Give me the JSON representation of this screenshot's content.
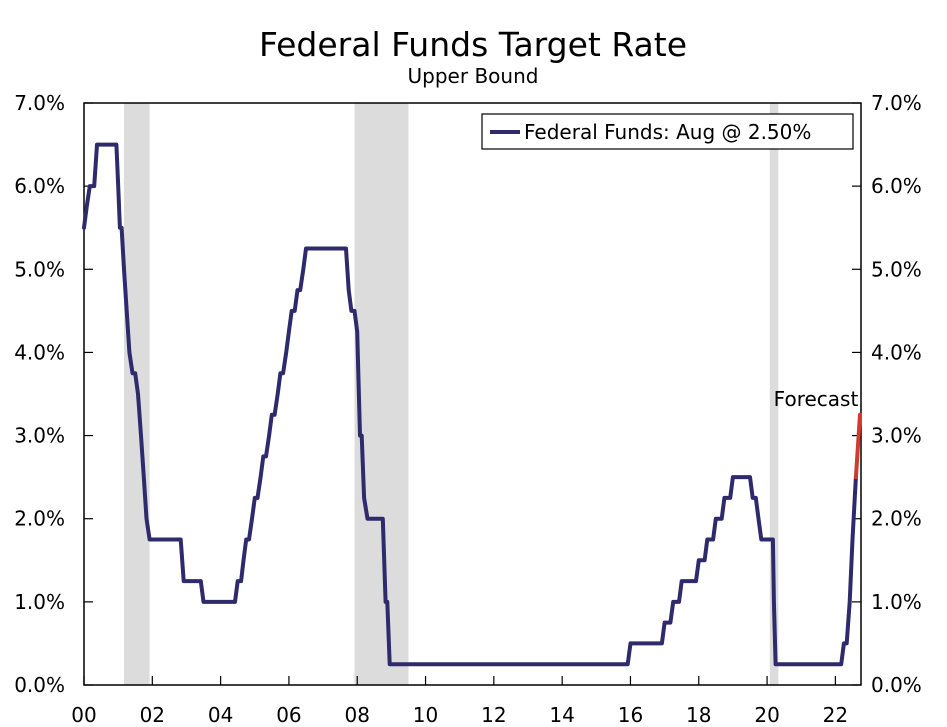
{
  "chart_data": {
    "type": "line",
    "title": "Federal Funds Target Rate",
    "subtitle": "Upper Bound",
    "xlabel": "",
    "ylabel": "",
    "x_range": [
      2000.0,
      2022.75
    ],
    "ylim": [
      0,
      7
    ],
    "x_ticks": [
      {
        "value": 2000,
        "label": "00"
      },
      {
        "value": 2002,
        "label": "02"
      },
      {
        "value": 2004,
        "label": "04"
      },
      {
        "value": 2006,
        "label": "06"
      },
      {
        "value": 2008,
        "label": "08"
      },
      {
        "value": 2010,
        "label": "10"
      },
      {
        "value": 2012,
        "label": "12"
      },
      {
        "value": 2014,
        "label": "14"
      },
      {
        "value": 2016,
        "label": "16"
      },
      {
        "value": 2018,
        "label": "18"
      },
      {
        "value": 2020,
        "label": "20"
      },
      {
        "value": 2022,
        "label": "22"
      }
    ],
    "y_ticks": [
      {
        "value": 0,
        "label": "0.0%"
      },
      {
        "value": 1,
        "label": "1.0%"
      },
      {
        "value": 2,
        "label": "2.0%"
      },
      {
        "value": 3,
        "label": "3.0%"
      },
      {
        "value": 4,
        "label": "4.0%"
      },
      {
        "value": 5,
        "label": "5.0%"
      },
      {
        "value": 6,
        "label": "6.0%"
      },
      {
        "value": 7,
        "label": "7.0%"
      }
    ],
    "recessions": [
      {
        "start": 2001.17,
        "end": 2001.92
      },
      {
        "start": 2007.92,
        "end": 2009.5
      },
      {
        "start": 2020.08,
        "end": 2020.33
      }
    ],
    "legend_position": "top-right",
    "grid": false,
    "series": [
      {
        "name": "Federal Funds: Aug @ 2.50%",
        "color": "#2e2a6b",
        "points": [
          [
            2000.0,
            5.5
          ],
          [
            2000.08,
            5.75
          ],
          [
            2000.17,
            6.0
          ],
          [
            2000.3,
            6.0
          ],
          [
            2000.38,
            6.5
          ],
          [
            2000.5,
            6.5
          ],
          [
            2000.95,
            6.5
          ],
          [
            2001.0,
            6.0
          ],
          [
            2001.05,
            5.5
          ],
          [
            2001.1,
            5.5
          ],
          [
            2001.17,
            5.0
          ],
          [
            2001.25,
            4.5
          ],
          [
            2001.33,
            4.0
          ],
          [
            2001.42,
            3.75
          ],
          [
            2001.5,
            3.75
          ],
          [
            2001.58,
            3.5
          ],
          [
            2001.67,
            3.0
          ],
          [
            2001.75,
            2.5
          ],
          [
            2001.83,
            2.0
          ],
          [
            2001.92,
            1.75
          ],
          [
            2002.83,
            1.75
          ],
          [
            2002.92,
            1.25
          ],
          [
            2003.42,
            1.25
          ],
          [
            2003.5,
            1.0
          ],
          [
            2004.42,
            1.0
          ],
          [
            2004.5,
            1.25
          ],
          [
            2004.6,
            1.25
          ],
          [
            2004.67,
            1.5
          ],
          [
            2004.75,
            1.75
          ],
          [
            2004.83,
            1.75
          ],
          [
            2004.92,
            2.0
          ],
          [
            2005.0,
            2.25
          ],
          [
            2005.08,
            2.25
          ],
          [
            2005.17,
            2.5
          ],
          [
            2005.25,
            2.75
          ],
          [
            2005.33,
            2.75
          ],
          [
            2005.42,
            3.0
          ],
          [
            2005.5,
            3.25
          ],
          [
            2005.58,
            3.25
          ],
          [
            2005.67,
            3.5
          ],
          [
            2005.75,
            3.75
          ],
          [
            2005.83,
            3.75
          ],
          [
            2005.92,
            4.0
          ],
          [
            2006.0,
            4.25
          ],
          [
            2006.08,
            4.5
          ],
          [
            2006.17,
            4.5
          ],
          [
            2006.25,
            4.75
          ],
          [
            2006.33,
            4.75
          ],
          [
            2006.42,
            5.0
          ],
          [
            2006.5,
            5.25
          ],
          [
            2007.67,
            5.25
          ],
          [
            2007.75,
            4.75
          ],
          [
            2007.83,
            4.5
          ],
          [
            2007.92,
            4.5
          ],
          [
            2008.0,
            4.25
          ],
          [
            2008.08,
            3.0
          ],
          [
            2008.13,
            3.0
          ],
          [
            2008.2,
            2.25
          ],
          [
            2008.3,
            2.0
          ],
          [
            2008.75,
            2.0
          ],
          [
            2008.83,
            1.0
          ],
          [
            2008.88,
            1.0
          ],
          [
            2008.95,
            0.25
          ],
          [
            2015.92,
            0.25
          ],
          [
            2016.0,
            0.5
          ],
          [
            2016.92,
            0.5
          ],
          [
            2017.0,
            0.75
          ],
          [
            2017.17,
            0.75
          ],
          [
            2017.25,
            1.0
          ],
          [
            2017.42,
            1.0
          ],
          [
            2017.5,
            1.25
          ],
          [
            2017.92,
            1.25
          ],
          [
            2018.0,
            1.5
          ],
          [
            2018.17,
            1.5
          ],
          [
            2018.25,
            1.75
          ],
          [
            2018.42,
            1.75
          ],
          [
            2018.5,
            2.0
          ],
          [
            2018.67,
            2.0
          ],
          [
            2018.75,
            2.25
          ],
          [
            2018.92,
            2.25
          ],
          [
            2019.0,
            2.5
          ],
          [
            2019.5,
            2.5
          ],
          [
            2019.58,
            2.25
          ],
          [
            2019.67,
            2.25
          ],
          [
            2019.75,
            2.0
          ],
          [
            2019.83,
            1.75
          ],
          [
            2020.17,
            1.75
          ],
          [
            2020.2,
            1.0
          ],
          [
            2020.25,
            0.25
          ],
          [
            2022.17,
            0.25
          ],
          [
            2022.25,
            0.5
          ],
          [
            2022.33,
            0.5
          ],
          [
            2022.42,
            1.0
          ],
          [
            2022.5,
            1.75
          ],
          [
            2022.6,
            2.5
          ]
        ]
      },
      {
        "name": "Forecast",
        "color": "#d23a2a",
        "points": [
          [
            2022.6,
            2.5
          ],
          [
            2022.72,
            3.25
          ]
        ]
      }
    ],
    "annotations": [
      {
        "text": "Forecast",
        "x": 2022.6,
        "y": 3.25
      }
    ]
  }
}
